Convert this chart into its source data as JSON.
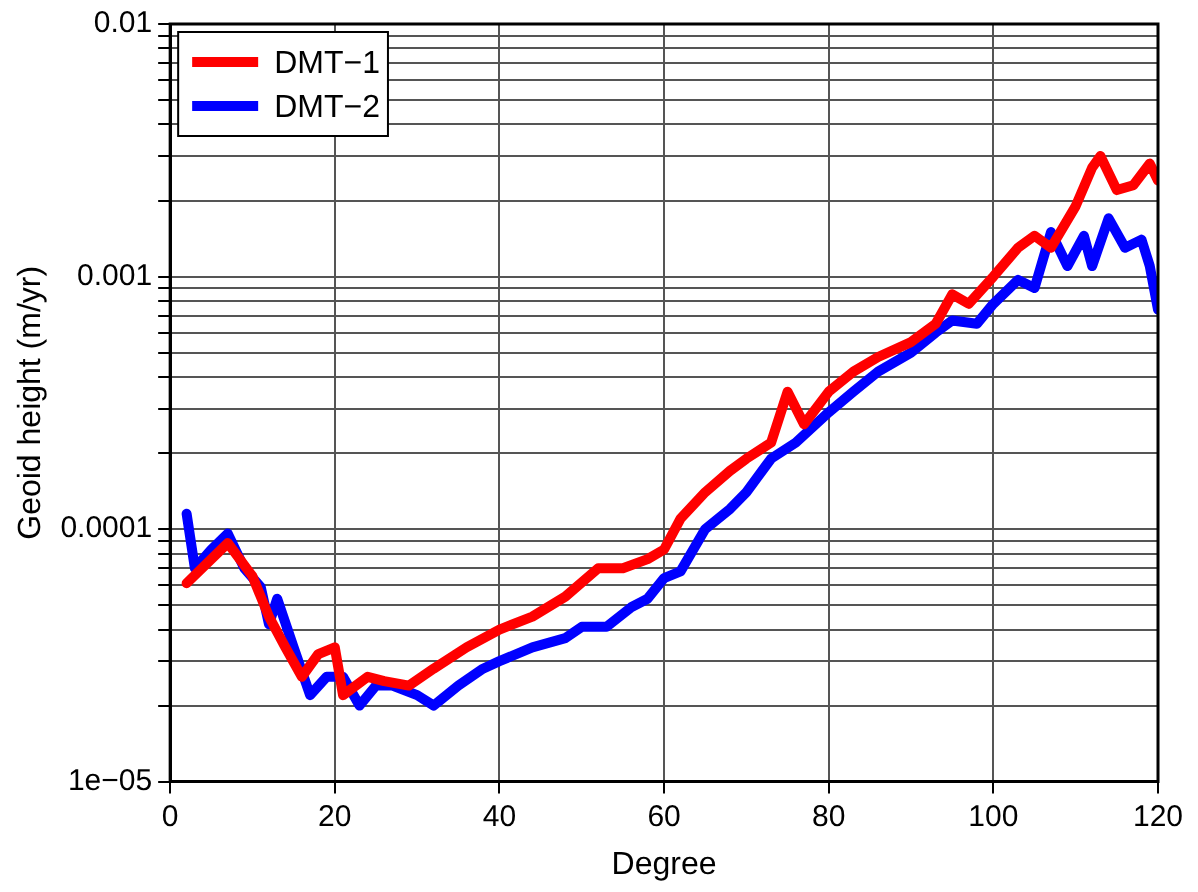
{
  "chart_data": {
    "type": "line",
    "xlabel": "Degree",
    "ylabel": "Geoid height (m/yr)",
    "log": "y",
    "grid": true,
    "legend": "top left",
    "line_style": "solid",
    "marker": "none",
    "xlim": [
      0,
      120
    ],
    "xticks": [
      0,
      20,
      40,
      60,
      80,
      100,
      120
    ],
    "ylim": [
      1e-05,
      0.01
    ],
    "yticks": [
      {
        "value": 1e-05,
        "label": "1e−05"
      },
      {
        "value": 2e-05,
        "label": null
      },
      {
        "value": 3e-05,
        "label": null
      },
      {
        "value": 4e-05,
        "label": null
      },
      {
        "value": 5e-05,
        "label": null
      },
      {
        "value": 6e-05,
        "label": null
      },
      {
        "value": 7e-05,
        "label": null
      },
      {
        "value": 8e-05,
        "label": null
      },
      {
        "value": 9e-05,
        "label": null
      },
      {
        "value": 0.0001,
        "label": "0.0001"
      },
      {
        "value": 0.0002,
        "label": null
      },
      {
        "value": 0.0003,
        "label": null
      },
      {
        "value": 0.0004,
        "label": null
      },
      {
        "value": 0.0005,
        "label": null
      },
      {
        "value": 0.0006,
        "label": null
      },
      {
        "value": 0.0007,
        "label": null
      },
      {
        "value": 0.0008,
        "label": null
      },
      {
        "value": 0.0009,
        "label": null
      },
      {
        "value": 0.001,
        "label": "0.001"
      },
      {
        "value": 0.002,
        "label": null
      },
      {
        "value": 0.003,
        "label": null
      },
      {
        "value": 0.004,
        "label": null
      },
      {
        "value": 0.005,
        "label": null
      },
      {
        "value": 0.006,
        "label": null
      },
      {
        "value": 0.007,
        "label": null
      },
      {
        "value": 0.008,
        "label": null
      },
      {
        "value": 0.009,
        "label": null
      },
      {
        "value": 0.01,
        "label": "0.01"
      }
    ],
    "series": [
      {
        "name": "DMT−1",
        "color": "#ff0000",
        "x": [
          2,
          5,
          7,
          10,
          12,
          14,
          16,
          18,
          20,
          21,
          24,
          26,
          29,
          32,
          36,
          40,
          44,
          48,
          52,
          55,
          58,
          60,
          62,
          65,
          68,
          70,
          73,
          75,
          77,
          80,
          83,
          86,
          90,
          93,
          95,
          97,
          100,
          103,
          105,
          107,
          110,
          112,
          113,
          115,
          117,
          119,
          120
        ],
        "values": [
          6.1e-05,
          7.6e-05,
          8.8e-05,
          6.5e-05,
          4.5e-05,
          3.4e-05,
          2.6e-05,
          3.2e-05,
          3.4e-05,
          2.2e-05,
          2.6e-05,
          2.5e-05,
          2.4e-05,
          2.8e-05,
          3.4e-05,
          4e-05,
          4.5e-05,
          5.4e-05,
          7e-05,
          7e-05,
          7.6e-05,
          8.3e-05,
          0.00011,
          0.00014,
          0.00017,
          0.00019,
          0.00022,
          0.00035,
          0.00026,
          0.00035,
          0.00042,
          0.00048,
          0.00055,
          0.00065,
          0.00085,
          0.00078,
          0.001,
          0.0013,
          0.00145,
          0.0013,
          0.0019,
          0.0027,
          0.003,
          0.0022,
          0.0023,
          0.0028,
          0.0024
        ]
      },
      {
        "name": "DMT−2",
        "color": "#0000ff",
        "x": [
          2,
          3,
          5,
          7,
          9,
          11,
          12,
          13,
          15,
          17,
          19,
          21,
          23,
          25,
          27,
          30,
          32,
          35,
          38,
          40,
          44,
          48,
          50,
          53,
          56,
          58,
          60,
          62,
          65,
          68,
          70,
          73,
          76,
          80,
          83,
          86,
          90,
          93,
          95,
          98,
          100,
          103,
          105,
          107,
          109,
          111,
          112,
          114,
          116,
          118,
          119,
          120
        ],
        "values": [
          0.000115,
          7e-05,
          8.3e-05,
          9.6e-05,
          7e-05,
          5.9e-05,
          4.2e-05,
          5.3e-05,
          3.4e-05,
          2.2e-05,
          2.6e-05,
          2.6e-05,
          2e-05,
          2.4e-05,
          2.4e-05,
          2.2e-05,
          2e-05,
          2.4e-05,
          2.8e-05,
          3e-05,
          3.4e-05,
          3.7e-05,
          4.1e-05,
          4.1e-05,
          4.9e-05,
          5.3e-05,
          6.4e-05,
          6.8e-05,
          0.0001,
          0.00012,
          0.00014,
          0.00019,
          0.00022,
          0.00029,
          0.00035,
          0.00042,
          0.0005,
          0.0006,
          0.00067,
          0.00065,
          0.00078,
          0.00097,
          0.0009,
          0.0015,
          0.0011,
          0.00145,
          0.0011,
          0.0017,
          0.0013,
          0.0014,
          0.0011,
          0.00074
        ]
      }
    ]
  }
}
